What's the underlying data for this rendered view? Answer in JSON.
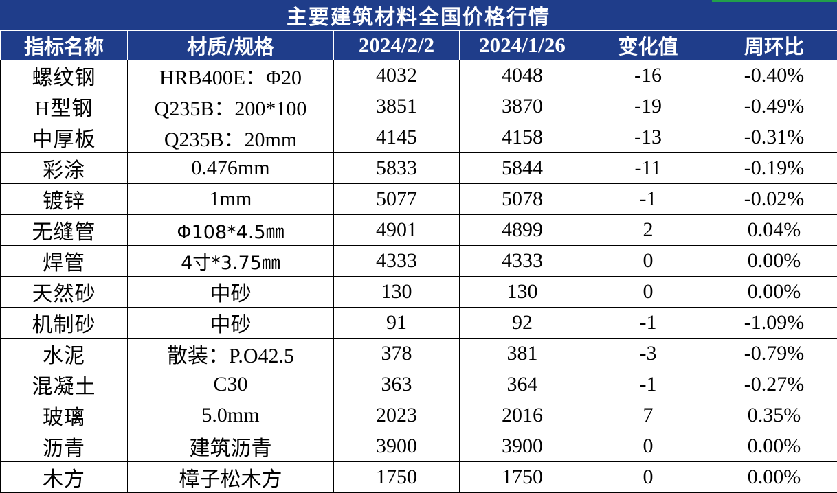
{
  "title": "主要建筑材料全国价格行情",
  "colors": {
    "header_bg": "#1f3d8a",
    "header_fg": "#ffffff",
    "negative": "#1e9e3e",
    "positive": "#c00000",
    "neutral": "#000000",
    "accent": "#22a04a"
  },
  "headers": [
    "指标名称",
    "材质/规格",
    "2024/2/2",
    "2024/1/26",
    "变化值",
    "周环比"
  ],
  "rows": [
    {
      "name": "螺纹钢",
      "spec": "HRB400E：Φ20",
      "cur": "4032",
      "prev": "4048",
      "chg": "-16",
      "pct": "-0.40%",
      "trend": "neg"
    },
    {
      "name": "H型钢",
      "spec": "Q235B：200*100",
      "cur": "3851",
      "prev": "3870",
      "chg": "-19",
      "pct": "-0.49%",
      "trend": "neg"
    },
    {
      "name": "中厚板",
      "spec": "Q235B：20mm",
      "cur": "4145",
      "prev": "4158",
      "chg": "-13",
      "pct": "-0.31%",
      "trend": "neg"
    },
    {
      "name": "彩涂",
      "spec": "0.476mm",
      "cur": "5833",
      "prev": "5844",
      "chg": "-11",
      "pct": "-0.19%",
      "trend": "neg"
    },
    {
      "name": "镀锌",
      "spec": "1mm",
      "cur": "5077",
      "prev": "5078",
      "chg": "-1",
      "pct": "-0.02%",
      "trend": "neg"
    },
    {
      "name": "无缝管",
      "spec": "Φ108*4.5㎜",
      "cur": "4901",
      "prev": "4899",
      "chg": "2",
      "pct": "0.04%",
      "trend": "pos",
      "spec_font": "sans"
    },
    {
      "name": "焊管",
      "spec": "4寸*3.75㎜",
      "cur": "4333",
      "prev": "4333",
      "chg": "0",
      "pct": "0.00%",
      "trend": "zero",
      "spec_font": "sans"
    },
    {
      "name": "天然砂",
      "spec": "中砂",
      "cur": "130",
      "prev": "130",
      "chg": "0",
      "pct": "0.00%",
      "trend": "zero"
    },
    {
      "name": "机制砂",
      "spec": "中砂",
      "cur": "91",
      "prev": "92",
      "chg": "-1",
      "pct": "-1.09%",
      "trend": "neg"
    },
    {
      "name": "水泥",
      "spec": "散装：P.O42.5",
      "cur": "378",
      "prev": "381",
      "chg": "-3",
      "pct": "-0.79%",
      "trend": "neg"
    },
    {
      "name": "混凝土",
      "spec": "C30",
      "cur": "363",
      "prev": "364",
      "chg": "-1",
      "pct": "-0.27%",
      "trend": "neg"
    },
    {
      "name": "玻璃",
      "spec": "5.0mm",
      "cur": "2023",
      "prev": "2016",
      "chg": "7",
      "pct": "0.35%",
      "trend": "pos"
    },
    {
      "name": "沥青",
      "spec": "建筑沥青",
      "cur": "3900",
      "prev": "3900",
      "chg": "0",
      "pct": "0.00%",
      "trend": "zero"
    },
    {
      "name": "木方",
      "spec": "樟子松木方",
      "cur": "1750",
      "prev": "1750",
      "chg": "0",
      "pct": "0.00%",
      "trend": "zero"
    }
  ]
}
